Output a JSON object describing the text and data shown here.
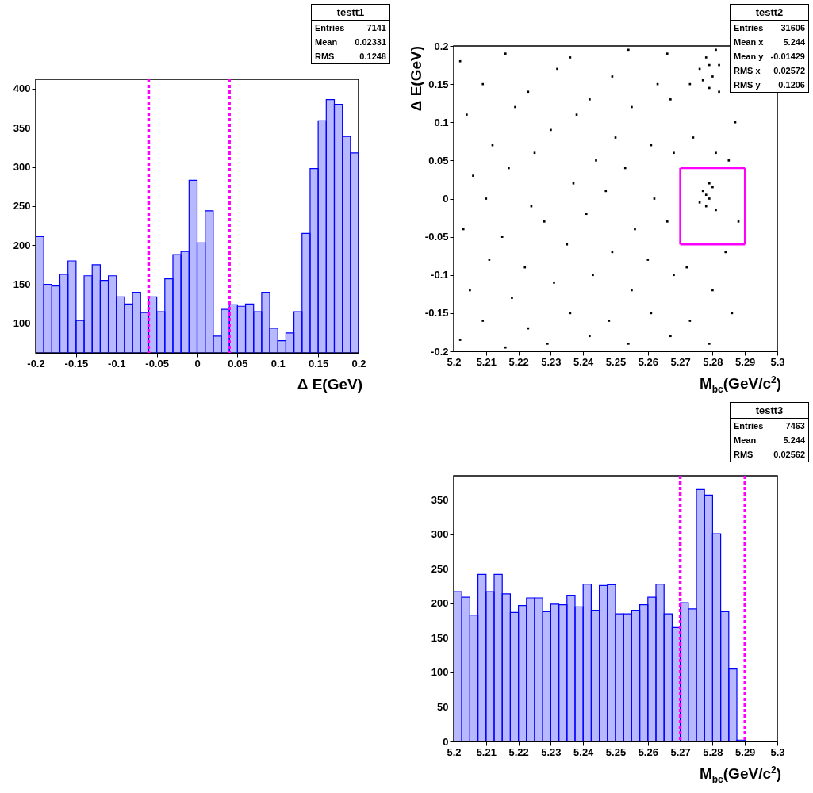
{
  "chart_data": [
    {
      "type": "histogram",
      "xlabel": "Δ E(GeV)",
      "color": "#0000ff",
      "bins": [
        -0.2,
        -0.19,
        -0.18,
        -0.17,
        -0.16,
        -0.15,
        -0.14,
        -0.13,
        -0.12,
        -0.11,
        -0.1,
        -0.09,
        -0.08,
        -0.07,
        -0.06,
        -0.05,
        -0.04,
        -0.03,
        -0.02,
        -0.01,
        0,
        0.01,
        0.02,
        0.03,
        0.04,
        0.05,
        0.06,
        0.07,
        0.08,
        0.09,
        0.1,
        0.11,
        0.12,
        0.13,
        0.14,
        0.15,
        0.16,
        0.17,
        0.18,
        0.19,
        0.2
      ],
      "values": [
        211,
        150,
        148,
        163,
        180,
        104,
        161,
        175,
        155,
        161,
        134,
        125,
        140,
        114,
        134,
        115,
        157,
        188,
        192,
        283,
        203,
        244,
        84,
        118,
        124,
        122,
        125,
        115,
        140,
        94,
        78,
        88,
        115,
        215,
        298,
        359,
        386,
        380,
        339,
        318
      ],
      "xlim": [
        -0.2,
        0.2
      ],
      "ylim": [
        62.5,
        412
      ],
      "xticks": [
        -0.2,
        -0.15,
        -0.1,
        -0.05,
        0,
        0.05,
        0.1,
        0.15,
        0.2
      ],
      "yticks": [
        100,
        150,
        200,
        250,
        300,
        350,
        400
      ],
      "ref_lines": [
        {
          "axis": "x",
          "value": -0.06,
          "color": "#ff00ff",
          "line_style": "dotted"
        },
        {
          "axis": "x",
          "value": 0.04,
          "color": "#ff00ff",
          "line_style": "dotted"
        }
      ],
      "annotations": [
        "testt1",
        "Entries",
        "7141",
        "Mean",
        "0.02331",
        "RMS",
        "0.1248"
      ]
    },
    {
      "type": "scatter",
      "xlabel": "M$_{bc}$(GeV/c$^{2}$)",
      "ylabel": "Δ E(GeV)",
      "marker": "square",
      "xlim": [
        5.2,
        5.3
      ],
      "ylim": [
        -0.2,
        0.2
      ],
      "xticks": [
        5.2,
        5.21,
        5.22,
        5.23,
        5.24,
        5.25,
        5.26,
        5.27,
        5.28,
        5.29,
        5.3
      ],
      "yticks": [
        -0.2,
        -0.15,
        -0.1,
        -0.05,
        0,
        0.05,
        0.1,
        0.15,
        0.2
      ],
      "series": [
        {
          "color": "#000000",
          "x": [
            5.202,
            5.205,
            5.203,
            5.206,
            5.204,
            5.202,
            5.209,
            5.211,
            5.21,
            5.212,
            5.209,
            5.216,
            5.218,
            5.215,
            5.217,
            5.219,
            5.216,
            5.223,
            5.222,
            5.224,
            5.225,
            5.223,
            5.229,
            5.231,
            5.228,
            5.23,
            5.232,
            5.236,
            5.235,
            5.237,
            5.238,
            5.236,
            5.242,
            5.243,
            5.241,
            5.244,
            5.242,
            5.248,
            5.249,
            5.247,
            5.25,
            5.249,
            5.254,
            5.255,
            5.256,
            5.253,
            5.255,
            5.254,
            5.261,
            5.26,
            5.262,
            5.261,
            5.263,
            5.267,
            5.268,
            5.266,
            5.268,
            5.267,
            5.266,
            5.273,
            5.272,
            5.274,
            5.273,
            5.279,
            5.28,
            5.281,
            5.284,
            5.286,
            5.288,
            5.287,
            5.285,
            5.276,
            5.278,
            5.28,
            5.282,
            5.279,
            5.277,
            5.281,
            5.279,
            5.282,
            5.277,
            5.279,
            5.278,
            5.28,
            5.276,
            5.279,
            5.281,
            5.278
          ],
          "values": [
            -0.185,
            -0.12,
            -0.04,
            0.03,
            0.11,
            0.18,
            -0.16,
            -0.08,
            0.0,
            0.07,
            0.15,
            -0.195,
            -0.13,
            -0.05,
            0.04,
            0.12,
            0.19,
            -0.17,
            -0.09,
            -0.01,
            0.06,
            0.14,
            -0.19,
            -0.11,
            -0.03,
            0.09,
            0.17,
            -0.15,
            -0.06,
            0.02,
            0.11,
            0.185,
            -0.18,
            -0.1,
            -0.02,
            0.05,
            0.13,
            -0.16,
            -0.07,
            0.01,
            0.08,
            0.16,
            -0.19,
            -0.12,
            -0.04,
            0.04,
            0.12,
            0.195,
            -0.15,
            -0.08,
            0.0,
            0.07,
            0.15,
            -0.18,
            -0.1,
            -0.03,
            0.06,
            0.13,
            0.19,
            -0.16,
            -0.09,
            0.08,
            0.15,
            -0.19,
            -0.12,
            0.06,
            -0.07,
            -0.15,
            -0.03,
            0.1,
            0.05,
            0.17,
            0.185,
            0.16,
            0.175,
            0.145,
            0.155,
            0.195,
            0.175,
            0.14,
            0.01,
            0.0,
            -0.01,
            0.015,
            -0.005,
            0.02,
            -0.015,
            0.005
          ]
        },
        {
          "type": "line",
          "marker": "none",
          "color": "#ff00ff",
          "x": [
            5.27,
            5.29
          ],
          "values": [
            -0.06,
            -0.06
          ]
        },
        {
          "type": "line",
          "marker": "none",
          "color": "#ff00ff",
          "x": [
            5.27,
            5.29
          ],
          "values": [
            0.04,
            0.04
          ]
        },
        {
          "type": "line",
          "marker": "none",
          "color": "#ff00ff",
          "x": [
            5.27,
            5.27
          ],
          "values": [
            -0.06,
            0.04
          ]
        },
        {
          "type": "line",
          "marker": "none",
          "color": "#ff00ff",
          "x": [
            5.29,
            5.29
          ],
          "values": [
            -0.06,
            0.04
          ]
        }
      ],
      "annotations": [
        "testt2",
        "Entries",
        "31606",
        "Mean x",
        "5.244",
        "Mean y",
        "-0.01429",
        "RMS x",
        "0.02572",
        "RMS y",
        "0.1206"
      ]
    },
    {
      "type": "histogram",
      "xlabel": "M$_{bc}$(GeV/c$^{2}$)",
      "color": "#0000ff",
      "bins": [
        5.2,
        5.2025,
        5.205,
        5.2075,
        5.21,
        5.2125,
        5.215,
        5.2175,
        5.22,
        5.2225,
        5.225,
        5.2275,
        5.23,
        5.2325,
        5.235,
        5.2375,
        5.24,
        5.2425,
        5.245,
        5.2475,
        5.25,
        5.2525,
        5.255,
        5.2575,
        5.26,
        5.2625,
        5.265,
        5.2675,
        5.27,
        5.2725,
        5.275,
        5.2775,
        5.28,
        5.2825,
        5.285,
        5.2875,
        5.29,
        5.2925,
        5.295,
        5.2975,
        5.3
      ],
      "values": [
        217,
        209,
        183,
        242,
        217,
        242,
        214,
        187,
        197,
        208,
        208,
        188,
        199,
        198,
        212,
        195,
        228,
        190,
        226,
        227,
        185,
        185,
        190,
        198,
        209,
        228,
        185,
        165,
        201,
        192,
        365,
        357,
        301,
        188,
        105,
        2,
        0,
        0,
        0,
        0
      ],
      "xlim": [
        5.2,
        5.3
      ],
      "ylim": [
        0,
        385
      ],
      "xticks": [
        5.2,
        5.21,
        5.22,
        5.23,
        5.24,
        5.25,
        5.26,
        5.27,
        5.28,
        5.29,
        5.3
      ],
      "yticks": [
        0,
        50,
        100,
        150,
        200,
        250,
        300,
        350
      ],
      "ref_lines": [
        {
          "axis": "x",
          "value": 5.27,
          "color": "#ff00ff",
          "line_style": "dotted"
        },
        {
          "axis": "x",
          "value": 5.29,
          "color": "#ff00ff",
          "line_style": "dotted"
        }
      ],
      "annotations": [
        "testt3",
        "Entries",
        "7463",
        "Mean",
        "5.244",
        "RMS",
        "0.02562"
      ]
    }
  ]
}
